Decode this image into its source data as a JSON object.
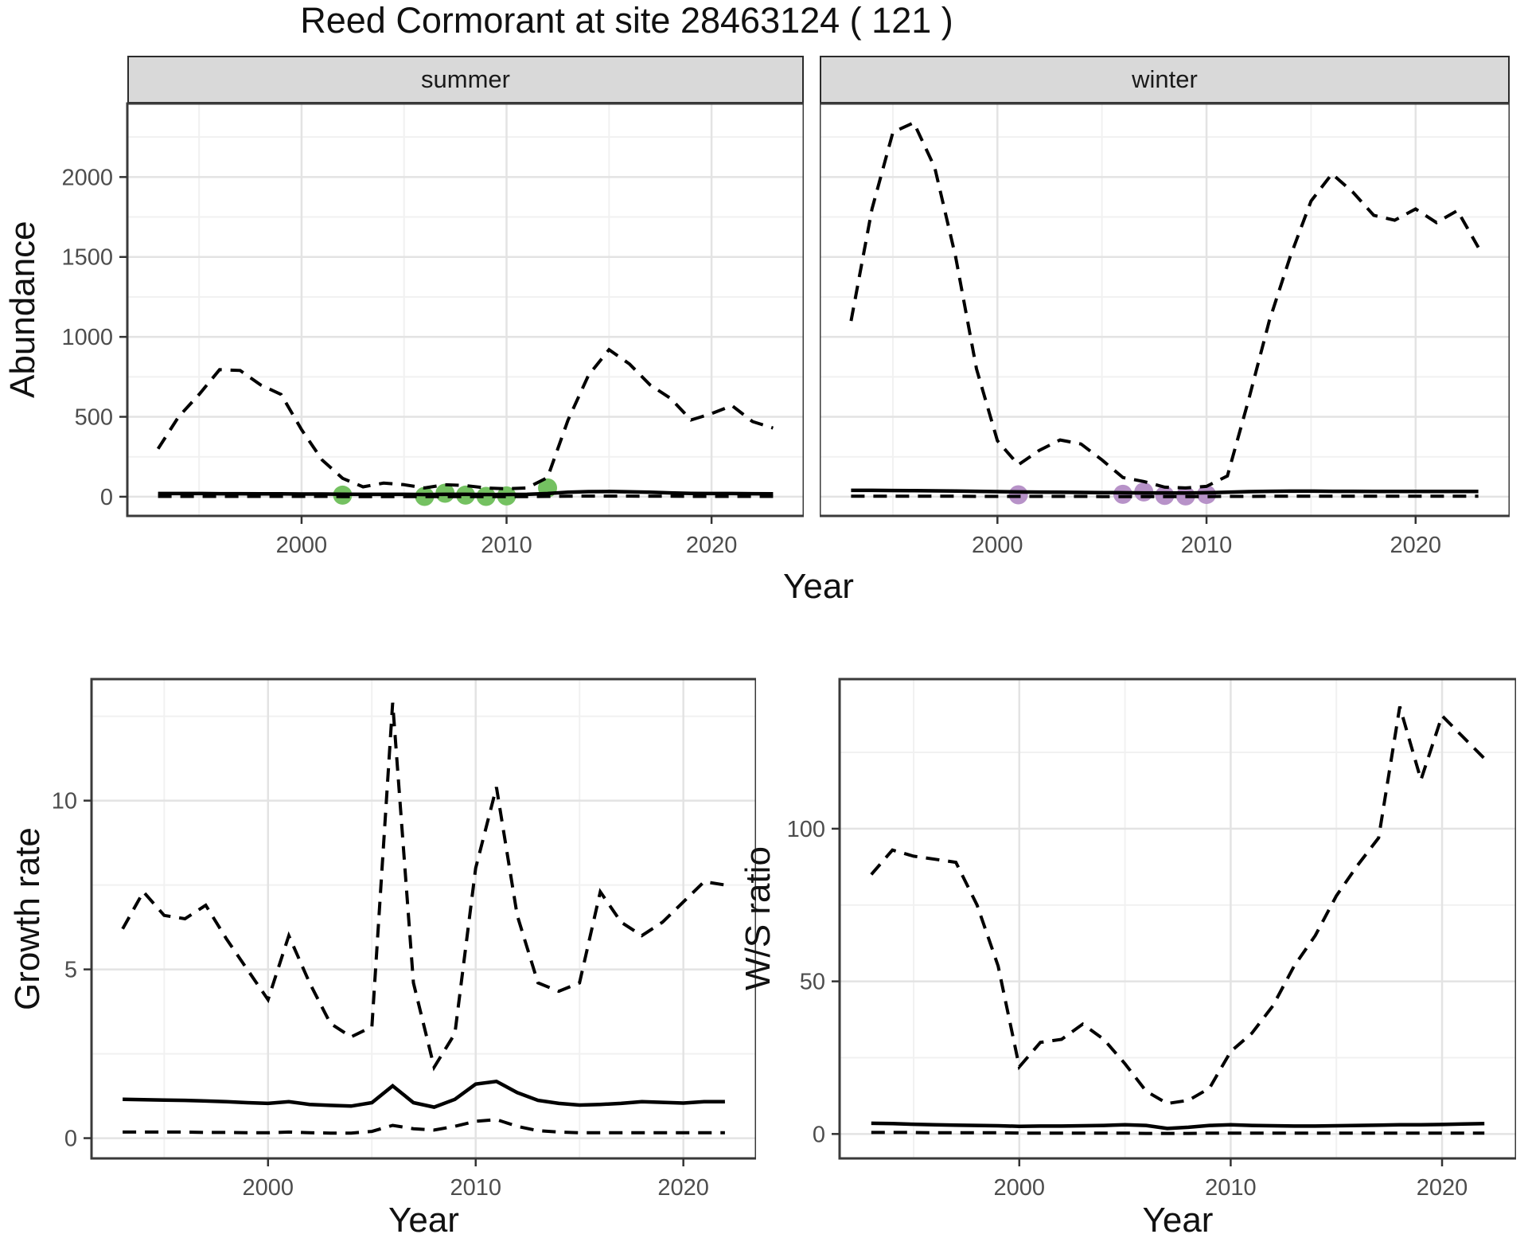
{
  "title": "Reed Cormorant at site 28463124 ( 121 )",
  "colors": {
    "summer_point": "#74c161",
    "winter_point": "#b792c8",
    "line": "#000000",
    "strip_bg": "#d9d9d9",
    "panel_border": "#3a3a3a",
    "grid_major": "#e3e3e3",
    "grid_minor": "#f1f1f1",
    "axis_text": "#4d4d4d"
  },
  "chart_data": [
    {
      "id": "abundance_summer",
      "type": "line",
      "facet": "summer",
      "ylabel": "Abundance",
      "xlabel": "Year",
      "xlim": [
        1991.5,
        2024.5
      ],
      "ylim": [
        -120,
        2460
      ],
      "xticks": [
        2000,
        2010,
        2020
      ],
      "yticks": [
        0,
        500,
        1000,
        1500,
        2000
      ],
      "xminor": [
        1995,
        2005,
        2015
      ],
      "yminor": [
        250,
        750,
        1250,
        1750,
        2250
      ],
      "x": [
        1993,
        1994,
        1995,
        1996,
        1997,
        1998,
        1999,
        2000,
        2001,
        2002,
        2003,
        2004,
        2005,
        2006,
        2007,
        2008,
        2009,
        2010,
        2011,
        2012,
        2013,
        2014,
        2015,
        2016,
        2017,
        2018,
        2019,
        2020,
        2021,
        2022,
        2023
      ],
      "series": [
        {
          "name": "upper_ci",
          "style": "dashed",
          "y": [
            300,
            500,
            640,
            795,
            790,
            700,
            640,
            420,
            230,
            115,
            62,
            85,
            75,
            55,
            75,
            70,
            55,
            50,
            55,
            120,
            480,
            760,
            920,
            830,
            700,
            615,
            480,
            520,
            570,
            470,
            430
          ]
        },
        {
          "name": "median",
          "style": "solid",
          "y": [
            20,
            20,
            20,
            19,
            19,
            18,
            18,
            17,
            17,
            16,
            15,
            15,
            15,
            14,
            15,
            15,
            14,
            14,
            15,
            20,
            28,
            32,
            33,
            31,
            28,
            24,
            21,
            20,
            20,
            19,
            18
          ]
        },
        {
          "name": "lower_ci",
          "style": "dashed",
          "y": [
            2,
            2,
            2,
            2,
            2,
            2,
            2,
            2,
            2,
            1,
            1,
            1,
            1,
            1,
            1,
            1,
            1,
            1,
            1,
            2,
            3,
            4,
            4,
            4,
            3,
            3,
            2,
            2,
            2,
            2,
            2
          ]
        }
      ],
      "points": {
        "name": "observed_counts",
        "color": "#74c161",
        "x": [
          2002,
          2006,
          2007,
          2008,
          2009,
          2010,
          2012
        ],
        "y": [
          10,
          2,
          22,
          10,
          2,
          5,
          55
        ]
      }
    },
    {
      "id": "abundance_winter",
      "type": "line",
      "facet": "winter",
      "ylabel": "Abundance",
      "xlabel": "Year",
      "xlim": [
        1991.5,
        2024.5
      ],
      "ylim": [
        -120,
        2460
      ],
      "xticks": [
        2000,
        2010,
        2020
      ],
      "yticks": [
        0,
        500,
        1000,
        1500,
        2000
      ],
      "xminor": [
        1995,
        2005,
        2015
      ],
      "yminor": [
        250,
        750,
        1250,
        1750,
        2250
      ],
      "x": [
        1993,
        1994,
        1995,
        1996,
        1997,
        1998,
        1999,
        2000,
        2001,
        2002,
        2003,
        2004,
        2005,
        2006,
        2007,
        2008,
        2009,
        2010,
        2011,
        2012,
        2013,
        2014,
        2015,
        2016,
        2017,
        2018,
        2019,
        2020,
        2021,
        2022,
        2023
      ],
      "series": [
        {
          "name": "upper_ci",
          "style": "dashed",
          "y": [
            1100,
            1800,
            2280,
            2340,
            2060,
            1500,
            800,
            350,
            200,
            290,
            355,
            330,
            230,
            120,
            95,
            60,
            55,
            65,
            130,
            600,
            1100,
            1500,
            1850,
            2020,
            1905,
            1760,
            1730,
            1800,
            1715,
            1790,
            1560
          ]
        },
        {
          "name": "median",
          "style": "solid",
          "y": [
            40,
            40,
            39,
            38,
            37,
            36,
            34,
            32,
            30,
            29,
            28,
            27,
            26,
            25,
            24,
            24,
            23,
            25,
            28,
            32,
            34,
            35,
            35,
            34,
            34,
            33,
            33,
            33,
            33,
            33,
            33
          ]
        },
        {
          "name": "lower_ci",
          "style": "dashed",
          "y": [
            3,
            3,
            3,
            3,
            3,
            3,
            2,
            2,
            2,
            2,
            2,
            2,
            1,
            1,
            1,
            1,
            1,
            1,
            2,
            2,
            3,
            3,
            3,
            3,
            3,
            3,
            3,
            3,
            3,
            3,
            3
          ]
        }
      ],
      "points": {
        "name": "observed_counts",
        "color": "#b792c8",
        "x": [
          2001,
          2006,
          2007,
          2008,
          2009,
          2010
        ],
        "y": [
          12,
          15,
          30,
          8,
          5,
          14
        ]
      }
    },
    {
      "id": "growth_rate",
      "type": "line",
      "facet": null,
      "ylabel": "Growth rate",
      "xlabel": "Year",
      "xlim": [
        1991.5,
        2023.5
      ],
      "ylim": [
        -0.6,
        13.6
      ],
      "xticks": [
        2000,
        2010,
        2020
      ],
      "yticks": [
        0,
        5,
        10
      ],
      "xminor": [
        1995,
        2005,
        2015
      ],
      "yminor": [
        2.5,
        7.5,
        12.5
      ],
      "x": [
        1993,
        1994,
        1995,
        1996,
        1997,
        1998,
        1999,
        2000,
        2001,
        2002,
        2003,
        2004,
        2005,
        2006,
        2007,
        2008,
        2009,
        2010,
        2011,
        2012,
        2013,
        2014,
        2015,
        2016,
        2017,
        2018,
        2019,
        2020,
        2021,
        2022
      ],
      "series": [
        {
          "name": "upper_ci",
          "style": "dashed",
          "y": [
            6.2,
            7.3,
            6.6,
            6.5,
            6.9,
            5.9,
            5.0,
            4.1,
            6.0,
            4.6,
            3.4,
            3.0,
            3.3,
            12.9,
            4.6,
            2.1,
            3.1,
            8.0,
            10.4,
            6.6,
            4.6,
            4.35,
            4.6,
            7.3,
            6.4,
            6.0,
            6.4,
            7.0,
            7.6,
            7.5
          ]
        },
        {
          "name": "median",
          "style": "solid",
          "y": [
            1.15,
            1.14,
            1.13,
            1.12,
            1.1,
            1.08,
            1.05,
            1.03,
            1.08,
            1.0,
            0.97,
            0.95,
            1.05,
            1.55,
            1.05,
            0.92,
            1.15,
            1.6,
            1.68,
            1.35,
            1.12,
            1.03,
            0.98,
            1.0,
            1.03,
            1.08,
            1.06,
            1.04,
            1.08,
            1.08
          ]
        },
        {
          "name": "lower_ci",
          "style": "dashed",
          "y": [
            0.18,
            0.18,
            0.18,
            0.18,
            0.17,
            0.17,
            0.16,
            0.16,
            0.18,
            0.16,
            0.15,
            0.15,
            0.2,
            0.38,
            0.28,
            0.24,
            0.35,
            0.5,
            0.55,
            0.35,
            0.22,
            0.18,
            0.16,
            0.16,
            0.16,
            0.16,
            0.16,
            0.16,
            0.16,
            0.16
          ]
        }
      ],
      "points": null
    },
    {
      "id": "ws_ratio",
      "type": "line",
      "facet": null,
      "ylabel": "W/S ratio",
      "xlabel": "Year",
      "xlim": [
        1991.5,
        2023.5
      ],
      "ylim": [
        -8,
        149
      ],
      "xticks": [
        2000,
        2010,
        2020
      ],
      "yticks": [
        0,
        50,
        100
      ],
      "xminor": [
        1995,
        2005,
        2015
      ],
      "yminor": [
        25,
        75,
        125
      ],
      "x": [
        1993,
        1994,
        1995,
        1996,
        1997,
        1998,
        1999,
        2000,
        2001,
        2002,
        2003,
        2004,
        2005,
        2006,
        2007,
        2008,
        2009,
        2010,
        2011,
        2012,
        2013,
        2014,
        2015,
        2016,
        2017,
        2018,
        2019,
        2020,
        2021,
        2022
      ],
      "series": [
        {
          "name": "upper_ci",
          "style": "dashed",
          "y": [
            85,
            93,
            91,
            90,
            89,
            75,
            55,
            22,
            30,
            31,
            36,
            31,
            23,
            14,
            10,
            11,
            15,
            27,
            33,
            42,
            55,
            65,
            78,
            88,
            97,
            140,
            116,
            137,
            130,
            123
          ]
        },
        {
          "name": "median",
          "style": "solid",
          "y": [
            3.5,
            3.4,
            3.2,
            3.0,
            2.9,
            2.8,
            2.7,
            2.5,
            2.6,
            2.6,
            2.7,
            2.8,
            3.0,
            2.8,
            1.8,
            2.2,
            2.8,
            3.0,
            2.8,
            2.7,
            2.6,
            2.6,
            2.7,
            2.8,
            2.9,
            3.0,
            3.0,
            3.1,
            3.3,
            3.4
          ]
        },
        {
          "name": "lower_ci",
          "style": "dashed",
          "y": [
            0.5,
            0.5,
            0.5,
            0.4,
            0.4,
            0.4,
            0.4,
            0.3,
            0.3,
            0.3,
            0.3,
            0.3,
            0.3,
            0.2,
            0.2,
            0.2,
            0.3,
            0.3,
            0.3,
            0.3,
            0.3,
            0.3,
            0.3,
            0.3,
            0.3,
            0.3,
            0.3,
            0.3,
            0.3,
            0.3
          ]
        }
      ],
      "points": null
    }
  ]
}
